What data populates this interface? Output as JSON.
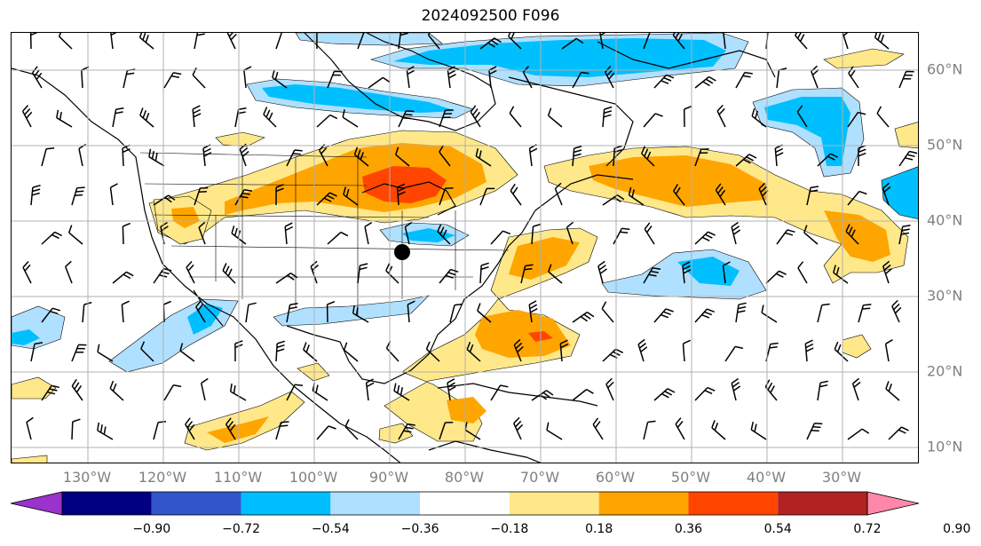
{
  "title": "2024092500 F096",
  "map": {
    "lon_ticks": [
      "130°W",
      "120°W",
      "110°W",
      "100°W",
      "90°W",
      "80°W",
      "70°W",
      "60°W",
      "50°W",
      "40°W",
      "30°W"
    ],
    "lat_ticks": [
      "60°N",
      "50°N",
      "40°N",
      "30°N",
      "20°N",
      "10°N"
    ],
    "grid": true,
    "marker": "point",
    "colors": {
      "grid": "#b0b0b0",
      "coast": "#000000",
      "tick_label": "#808080"
    }
  },
  "colorbar": {
    "labels": [
      "−0.90",
      "−0.72",
      "−0.54",
      "−0.36",
      "−0.18",
      "0.18",
      "0.36",
      "0.54",
      "0.72",
      "0.90"
    ],
    "colors": [
      "#9933cc",
      "#000080",
      "#3355cc",
      "#00bfff",
      "#b0e0ff",
      "#ffffff",
      "#ffe88a",
      "#ffa500",
      "#ff4500",
      "#b22222",
      "#ff88aa"
    ],
    "extend": "both"
  }
}
